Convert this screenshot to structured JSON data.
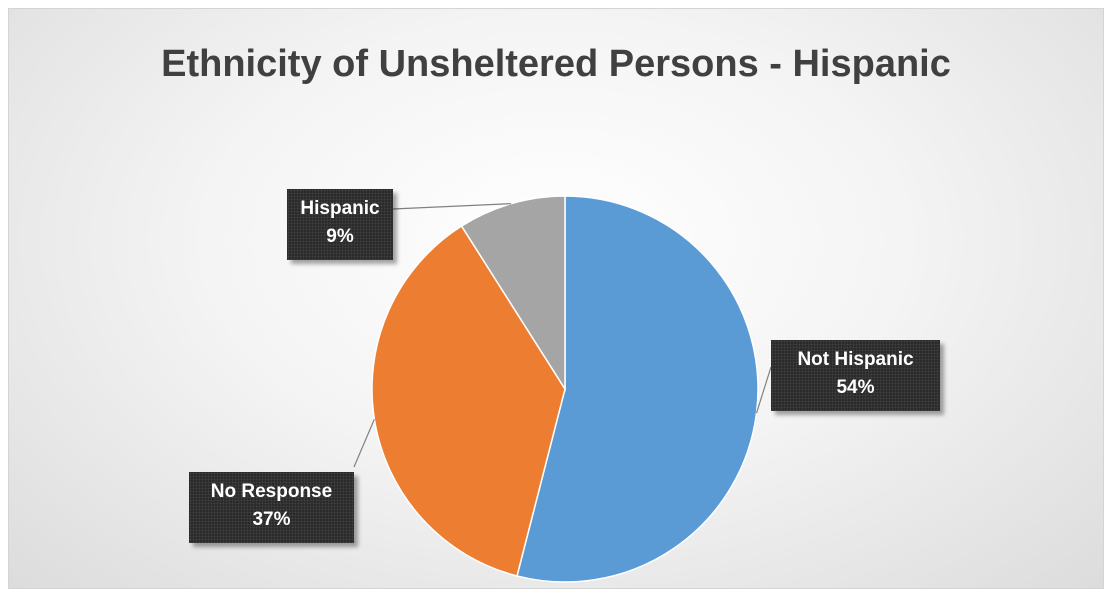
{
  "chart_data": {
    "type": "pie",
    "title": "Ethnicity of Unsheltered Persons - Hispanic",
    "slices": [
      {
        "label": "Not Hispanic",
        "value": 54,
        "percent_label": "54%",
        "color": "#5b9bd5"
      },
      {
        "label": "No Response",
        "value": 37,
        "percent_label": "37%",
        "color": "#ed7d31"
      },
      {
        "label": "Hispanic",
        "value": 9,
        "percent_label": "9%",
        "color": "#a5a5a5"
      }
    ],
    "legend": "none",
    "data_labels": "callout"
  }
}
